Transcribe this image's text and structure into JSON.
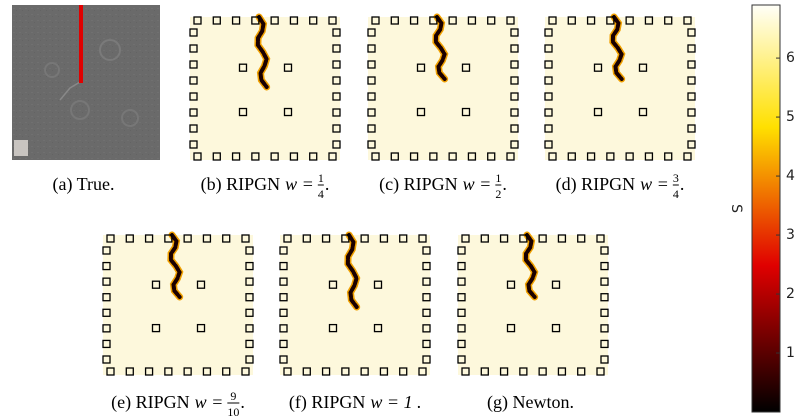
{
  "captions": [
    {
      "text": "(a) True."
    },
    {
      "text": "(b) RIPGN",
      "math": "w =",
      "num": "1",
      "den": "4",
      "end": "."
    },
    {
      "text": "(c) RIPGN",
      "math": "w =",
      "num": "1",
      "den": "2",
      "end": "."
    },
    {
      "text": "(d) RIPGN",
      "math": "w =",
      "num": "3",
      "den": "4",
      "end": "."
    },
    {
      "text": "(e) RIPGN",
      "math": "w =",
      "num": "9",
      "den": "10",
      "end": "."
    },
    {
      "text": "(f) RIPGN",
      "math": "w = 1",
      "end": "."
    },
    {
      "text": "(g) Newton."
    }
  ],
  "colorbar": {
    "label": "S",
    "lim": [
      0,
      6.9
    ],
    "ticks": [
      1,
      2,
      3,
      4,
      5,
      6
    ]
  }
}
